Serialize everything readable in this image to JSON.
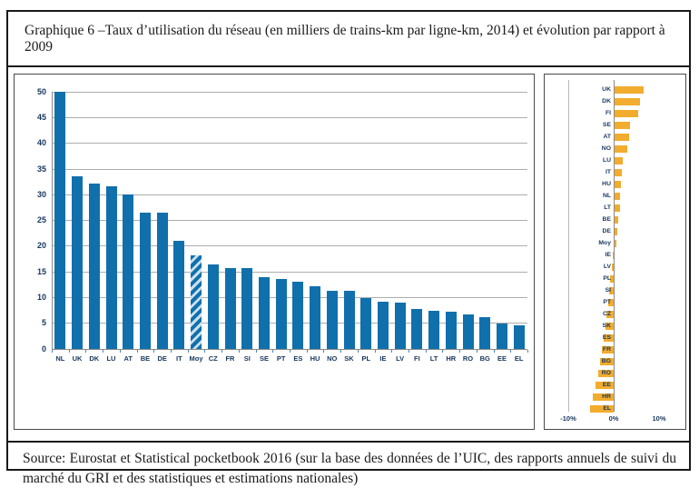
{
  "title": "Graphique 6 –Taux d’utilisation du réseau (en milliers de trains-km par ligne-km, 2014) et évolution par rapport à 2009",
  "source": "Source: Eurostat et Statistical pocketbook 2016 (sur la base des données de l’UIC, des rapports annuels de suivi du marché du GRI et des statistiques et estimations nationales)",
  "colors": {
    "bar_blue": "#1070AC",
    "bar_amber": "#F2AC2E",
    "hatch_light": "#C9E0EF",
    "grid": "#ADADAD",
    "axis_text": "#17375E",
    "frame_border": "#1A1A1A"
  },
  "chart_data": [
    {
      "type": "bar",
      "title": "",
      "xlabel": "",
      "ylabel": "",
      "ylim": [
        0,
        50
      ],
      "ytick_step": 5,
      "grid": "horizontal",
      "highlight_category": "Moy",
      "highlight_style": "diagonal-hatch",
      "categories": [
        "NL",
        "UK",
        "DK",
        "LU",
        "AT",
        "BE",
        "DE",
        "IT",
        "Moy",
        "CZ",
        "FR",
        "SI",
        "SE",
        "PT",
        "ES",
        "HU",
        "NO",
        "SK",
        "PL",
        "IE",
        "LV",
        "FI",
        "LT",
        "HR",
        "RO",
        "BG",
        "EE",
        "EL"
      ],
      "values": [
        50,
        33.5,
        32.1,
        31.5,
        30,
        26.5,
        26.5,
        21,
        18.2,
        16.3,
        15.6,
        15.6,
        13.9,
        13.5,
        13.1,
        12.2,
        11.3,
        11.3,
        9.8,
        9.1,
        9.0,
        7.8,
        7.3,
        7.1,
        6.7,
        6.2,
        4.8,
        4.6
      ]
    },
    {
      "type": "bar",
      "orientation": "horizontal",
      "title": "",
      "xlabel": "",
      "ylabel": "",
      "xlim": [
        -10,
        10
      ],
      "xtick_labels": [
        "-10%",
        "0%",
        "10%"
      ],
      "xtick_values": [
        -10,
        0,
        10
      ],
      "grid": "vertical",
      "unit": "percent",
      "categories": [
        "UK",
        "DK",
        "FI",
        "SE",
        "AT",
        "NO",
        "LU",
        "IT",
        "HU",
        "NL",
        "LT",
        "BE",
        "DE",
        "Moy",
        "IE",
        "LV",
        "PL",
        "SI",
        "PT",
        "CZ",
        "SK",
        "ES",
        "FR",
        "BG",
        "RO",
        "EE",
        "HR",
        "EL"
      ],
      "values": [
        6.3,
        5.5,
        5.2,
        3.4,
        3.2,
        2.8,
        1.7,
        1.6,
        1.4,
        1.2,
        1.1,
        0.8,
        0.5,
        0.3,
        -0.2,
        -0.5,
        -0.8,
        -1.0,
        -1.3,
        -1.6,
        -1.9,
        -2.2,
        -2.6,
        -3.1,
        -3.4,
        -4.0,
        -4.7,
        -5.3
      ]
    }
  ]
}
